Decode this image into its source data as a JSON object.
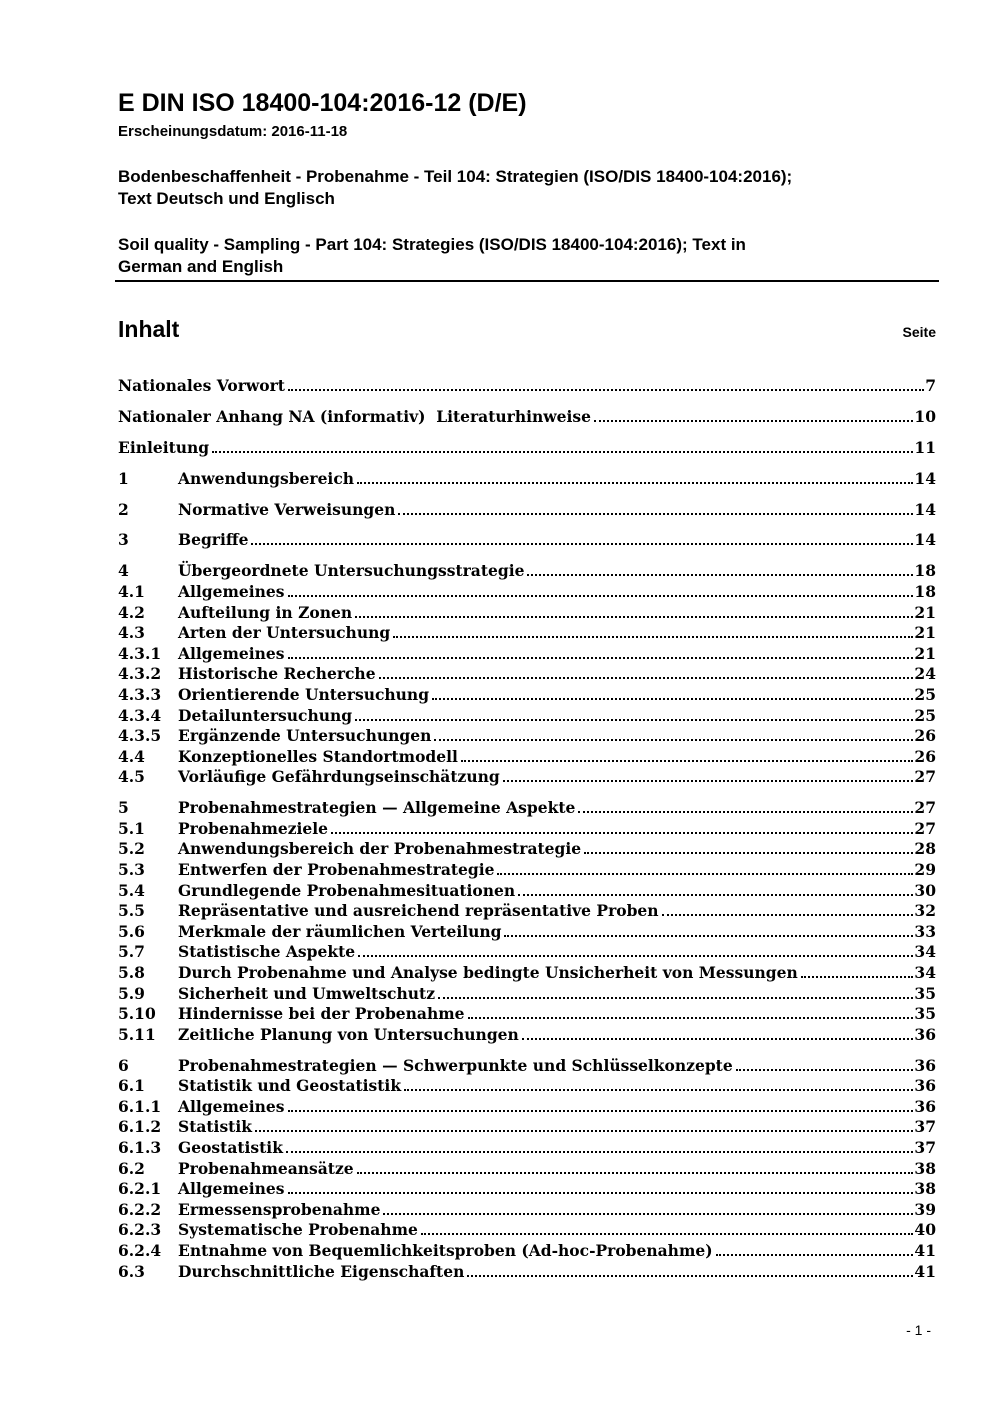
{
  "colors": {
    "text": "#000000",
    "background": "#ffffff"
  },
  "header": {
    "doc_code": "E DIN ISO 18400-104:2016-12 (D/E)",
    "release_date_line": "Erscheinungsdatum: 2016-11-18",
    "title_de_lines": [
      "Bodenbeschaffenheit - Probenahme - Teil 104: Strategien (ISO/DIS 18400-104:2016);",
      "Text Deutsch und Englisch"
    ],
    "title_en_lines": [
      "Soil quality - Sampling - Part 104: Strategies (ISO/DIS 18400-104:2016); Text in",
      "German and English"
    ]
  },
  "toc": {
    "heading": "Inhalt",
    "page_column_label": "Seite",
    "entries": [
      {
        "num": "",
        "label": "Nationales Vorwort",
        "page": "7",
        "group": false
      },
      {
        "num": "",
        "label": "Nationaler Anhang NA (informativ)  Literaturhinweise",
        "page": "10",
        "group": true
      },
      {
        "num": "",
        "label": "Einleitung",
        "page": "11",
        "group": true
      },
      {
        "num": "1",
        "label": "Anwendungsbereich",
        "page": "14",
        "group": true
      },
      {
        "num": "2",
        "label": "Normative Verweisungen",
        "page": "14",
        "group": true
      },
      {
        "num": "3",
        "label": "Begriffe",
        "page": "14",
        "group": true
      },
      {
        "num": "4",
        "label": "Übergeordnete Untersuchungsstrategie",
        "page": "18",
        "group": true
      },
      {
        "num": "4.1",
        "label": "Allgemeines",
        "page": "18",
        "group": false
      },
      {
        "num": "4.2",
        "label": "Aufteilung in Zonen",
        "page": "21",
        "group": false
      },
      {
        "num": "4.3",
        "label": "Arten der Untersuchung",
        "page": "21",
        "group": false
      },
      {
        "num": "4.3.1",
        "label": "Allgemeines",
        "page": "21",
        "group": false
      },
      {
        "num": "4.3.2",
        "label": "Historische Recherche",
        "page": "24",
        "group": false
      },
      {
        "num": "4.3.3",
        "label": "Orientierende Untersuchung",
        "page": "25",
        "group": false
      },
      {
        "num": "4.3.4",
        "label": "Detailuntersuchung",
        "page": "25",
        "group": false
      },
      {
        "num": "4.3.5",
        "label": "Ergänzende Untersuchungen",
        "page": "26",
        "group": false
      },
      {
        "num": "4.4",
        "label": "Konzeptionelles Standortmodell",
        "page": "26",
        "group": false
      },
      {
        "num": "4.5",
        "label": "Vorläufige Gefährdungseinschätzung",
        "page": "27",
        "group": false
      },
      {
        "num": "5",
        "label": "Probenahmestrategien — Allgemeine Aspekte",
        "page": "27",
        "group": true
      },
      {
        "num": "5.1",
        "label": "Probenahmeziele",
        "page": "27",
        "group": false
      },
      {
        "num": "5.2",
        "label": "Anwendungsbereich der Probenahmestrategie",
        "page": "28",
        "group": false
      },
      {
        "num": "5.3",
        "label": "Entwerfen der Probenahmestrategie",
        "page": "29",
        "group": false
      },
      {
        "num": "5.4",
        "label": "Grundlegende Probenahmesituationen",
        "page": "30",
        "group": false
      },
      {
        "num": "5.5",
        "label": "Repräsentative und ausreichend repräsentative Proben",
        "page": "32",
        "group": false
      },
      {
        "num": "5.6",
        "label": "Merkmale der räumlichen Verteilung",
        "page": "33",
        "group": false
      },
      {
        "num": "5.7",
        "label": "Statistische Aspekte",
        "page": "34",
        "group": false
      },
      {
        "num": "5.8",
        "label": "Durch Probenahme und Analyse bedingte Unsicherheit von Messungen",
        "page": "34",
        "group": false
      },
      {
        "num": "5.9",
        "label": "Sicherheit und Umweltschutz",
        "page": "35",
        "group": false
      },
      {
        "num": "5.10",
        "label": "Hindernisse bei der Probenahme",
        "page": "35",
        "group": false
      },
      {
        "num": "5.11",
        "label": "Zeitliche Planung von Untersuchungen",
        "page": "36",
        "group": false
      },
      {
        "num": "6",
        "label": "Probenahmestrategien — Schwerpunkte und Schlüsselkonzepte",
        "page": "36",
        "group": true
      },
      {
        "num": "6.1",
        "label": "Statistik und Geostatistik",
        "page": "36",
        "group": false
      },
      {
        "num": "6.1.1",
        "label": "Allgemeines",
        "page": "36",
        "group": false
      },
      {
        "num": "6.1.2",
        "label": "Statistik",
        "page": "37",
        "group": false
      },
      {
        "num": "6.1.3",
        "label": "Geostatistik",
        "page": "37",
        "group": false
      },
      {
        "num": "6.2",
        "label": "Probenahmeansätze",
        "page": "38",
        "group": false
      },
      {
        "num": "6.2.1",
        "label": "Allgemeines",
        "page": "38",
        "group": false
      },
      {
        "num": "6.2.2",
        "label": "Ermessensprobenahme",
        "page": "39",
        "group": false
      },
      {
        "num": "6.2.3",
        "label": "Systematische Probenahme",
        "page": "40",
        "group": false
      },
      {
        "num": "6.2.4",
        "label": "Entnahme von Bequemlichkeitsproben (Ad-hoc-Probenahme)",
        "page": "41",
        "group": false
      },
      {
        "num": "6.3",
        "label": "Durchschnittliche Eigenschaften",
        "page": "41",
        "group": false
      }
    ]
  },
  "footer": {
    "page_number": "- 1 -"
  }
}
